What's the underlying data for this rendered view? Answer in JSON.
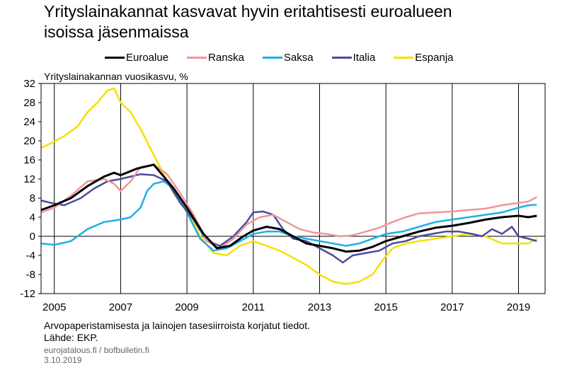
{
  "title": "Yrityslainakannat kasvavat hyvin eritahtisesti euroalueen\nisoissa jäsenmaissa",
  "note": "Arvopaperistamisesta ja lainojen tasesiirroista korjatut tiedot.\nLähde: EKP.",
  "site": "eurojatalous.fi  / bofbulletin.fi",
  "date": "3.10.2019",
  "colors": {
    "Euroalue": "#000000",
    "Ranska": "#f0969b",
    "Saksa": "#1eb0e6",
    "Italia": "#4b4b9b",
    "Espanja": "#f5e100"
  },
  "chart_data": {
    "type": "line",
    "title": "Yrityslainakannat kasvavat hyvin eritahtisesti euroalueen isoissa jäsenmaissa",
    "ylabel": "Yrityslainakannan vuosikasvu, %",
    "xlabel": "",
    "x_ticks": [
      "2005",
      "2007",
      "2009",
      "2011",
      "2013",
      "2015",
      "2017",
      "2019"
    ],
    "y_ticks": [
      32,
      28,
      24,
      20,
      16,
      12,
      8,
      4,
      0,
      -4,
      -8,
      -12
    ],
    "ylim": [
      -12,
      32
    ],
    "xlim": [
      2004.6,
      2019.8
    ],
    "grid": "vertical lines at year marks",
    "legend_position": "top",
    "series": [
      {
        "name": "Euroalue",
        "x": [
          2004.6,
          2005.0,
          2005.5,
          2006.0,
          2006.5,
          2006.8,
          2007.0,
          2007.5,
          2008.0,
          2008.3,
          2008.6,
          2009.0,
          2009.5,
          2009.9,
          2010.3,
          2010.7,
          2011.0,
          2011.4,
          2011.8,
          2012.2,
          2012.6,
          2013.0,
          2013.4,
          2013.8,
          2014.2,
          2014.6,
          2015.0,
          2015.5,
          2016.0,
          2016.5,
          2017.0,
          2017.5,
          2018.0,
          2018.5,
          2019.0,
          2019.3,
          2019.55
        ],
        "y": [
          5.5,
          6.5,
          8.0,
          10.5,
          12.5,
          13.3,
          12.8,
          14.2,
          15.0,
          12.5,
          10.0,
          6.0,
          0.5,
          -2.5,
          -2.0,
          0.0,
          1.2,
          2.0,
          1.5,
          0.0,
          -1.5,
          -2.0,
          -2.5,
          -3.2,
          -3.0,
          -2.2,
          -1.0,
          0.0,
          1.0,
          1.8,
          2.2,
          2.8,
          3.5,
          4.0,
          4.3,
          4.0,
          4.3
        ]
      },
      {
        "name": "Ranska",
        "x": [
          2004.6,
          2005.0,
          2005.5,
          2006.0,
          2006.5,
          2006.8,
          2007.0,
          2007.3,
          2007.6,
          2008.0,
          2008.4,
          2008.8,
          2009.2,
          2009.6,
          2010.0,
          2010.4,
          2010.8,
          2011.2,
          2011.6,
          2012.0,
          2012.4,
          2012.8,
          2013.2,
          2013.6,
          2014.0,
          2014.4,
          2014.8,
          2015.2,
          2015.6,
          2016.0,
          2016.5,
          2017.0,
          2017.5,
          2018.0,
          2018.5,
          2019.0,
          2019.3,
          2019.55
        ],
        "y": [
          5.0,
          6.0,
          8.5,
          11.5,
          12.0,
          11.0,
          9.5,
          11.5,
          14.5,
          15.0,
          13.0,
          9.0,
          4.5,
          -1.0,
          -2.5,
          -0.5,
          2.5,
          4.0,
          4.5,
          3.0,
          1.5,
          0.8,
          0.5,
          0.0,
          0.2,
          1.0,
          1.8,
          3.0,
          4.0,
          4.8,
          5.0,
          5.2,
          5.5,
          5.8,
          6.5,
          7.0,
          7.3,
          8.2
        ]
      },
      {
        "name": "Saksa",
        "x": [
          2004.6,
          2005.0,
          2005.5,
          2006.0,
          2006.5,
          2007.0,
          2007.3,
          2007.6,
          2007.8,
          2008.0,
          2008.3,
          2008.6,
          2009.0,
          2009.4,
          2009.8,
          2010.2,
          2010.6,
          2011.0,
          2011.4,
          2011.8,
          2012.2,
          2012.6,
          2013.0,
          2013.4,
          2013.8,
          2014.2,
          2014.6,
          2015.0,
          2015.5,
          2016.0,
          2016.5,
          2017.0,
          2017.5,
          2018.0,
          2018.5,
          2019.0,
          2019.3,
          2019.55
        ],
        "y": [
          -1.5,
          -1.8,
          -1.0,
          1.5,
          3.0,
          3.5,
          4.0,
          6.0,
          9.5,
          11.0,
          11.5,
          10.0,
          5.0,
          -0.5,
          -3.0,
          -2.5,
          -1.0,
          0.5,
          1.0,
          1.0,
          0.0,
          -0.5,
          -1.0,
          -1.5,
          -2.0,
          -1.5,
          -0.5,
          0.5,
          1.0,
          2.0,
          3.0,
          3.5,
          4.0,
          4.5,
          5.0,
          6.0,
          6.5,
          6.6
        ]
      },
      {
        "name": "Italia",
        "x": [
          2004.6,
          2004.9,
          2005.3,
          2005.8,
          2006.2,
          2006.6,
          2007.0,
          2007.3,
          2007.6,
          2008.0,
          2008.4,
          2008.8,
          2009.2,
          2009.6,
          2010.0,
          2010.4,
          2010.8,
          2011.0,
          2011.3,
          2011.6,
          2011.9,
          2012.2,
          2012.6,
          2013.0,
          2013.4,
          2013.7,
          2014.0,
          2014.4,
          2014.8,
          2015.2,
          2015.6,
          2016.0,
          2016.4,
          2016.8,
          2017.2,
          2017.6,
          2017.9,
          2018.2,
          2018.5,
          2018.8,
          2019.0,
          2019.3,
          2019.55
        ],
        "y": [
          7.5,
          7.0,
          6.5,
          8.0,
          10.0,
          11.5,
          12.0,
          12.5,
          13.0,
          12.8,
          11.5,
          7.0,
          3.5,
          -1.0,
          -2.0,
          0.0,
          3.0,
          5.0,
          5.2,
          4.5,
          1.5,
          -0.5,
          -1.0,
          -2.5,
          -4.0,
          -5.5,
          -4.0,
          -3.5,
          -3.0,
          -1.5,
          -1.0,
          0.0,
          0.5,
          1.0,
          1.0,
          0.5,
          0.0,
          1.5,
          0.5,
          2.0,
          0.0,
          -0.5,
          -1.0
        ]
      },
      {
        "name": "Espanja",
        "x": [
          2004.6,
          2004.9,
          2005.3,
          2005.7,
          2006.0,
          2006.3,
          2006.6,
          2006.8,
          2007.0,
          2007.3,
          2007.6,
          2008.0,
          2008.3,
          2008.6,
          2009.0,
          2009.4,
          2009.8,
          2010.2,
          2010.6,
          2011.0,
          2011.4,
          2011.8,
          2012.2,
          2012.6,
          2013.0,
          2013.4,
          2013.8,
          2014.2,
          2014.6,
          2014.9,
          2015.2,
          2015.6,
          2016.0,
          2016.5,
          2017.0,
          2017.5,
          2018.0,
          2018.5,
          2019.0,
          2019.3,
          2019.55
        ],
        "y": [
          18.5,
          19.5,
          21.0,
          23.0,
          26.0,
          28.0,
          30.5,
          31.0,
          28.0,
          26.0,
          22.5,
          17.0,
          13.0,
          9.0,
          5.5,
          0.0,
          -3.5,
          -4.0,
          -2.0,
          -1.0,
          -2.0,
          -3.0,
          -4.5,
          -6.0,
          -8.0,
          -9.5,
          -10.0,
          -9.5,
          -8.0,
          -5.0,
          -2.5,
          -1.5,
          -1.0,
          -0.5,
          0.0,
          0.5,
          0.0,
          -1.5,
          -1.5,
          -1.5,
          -0.5
        ]
      }
    ]
  }
}
